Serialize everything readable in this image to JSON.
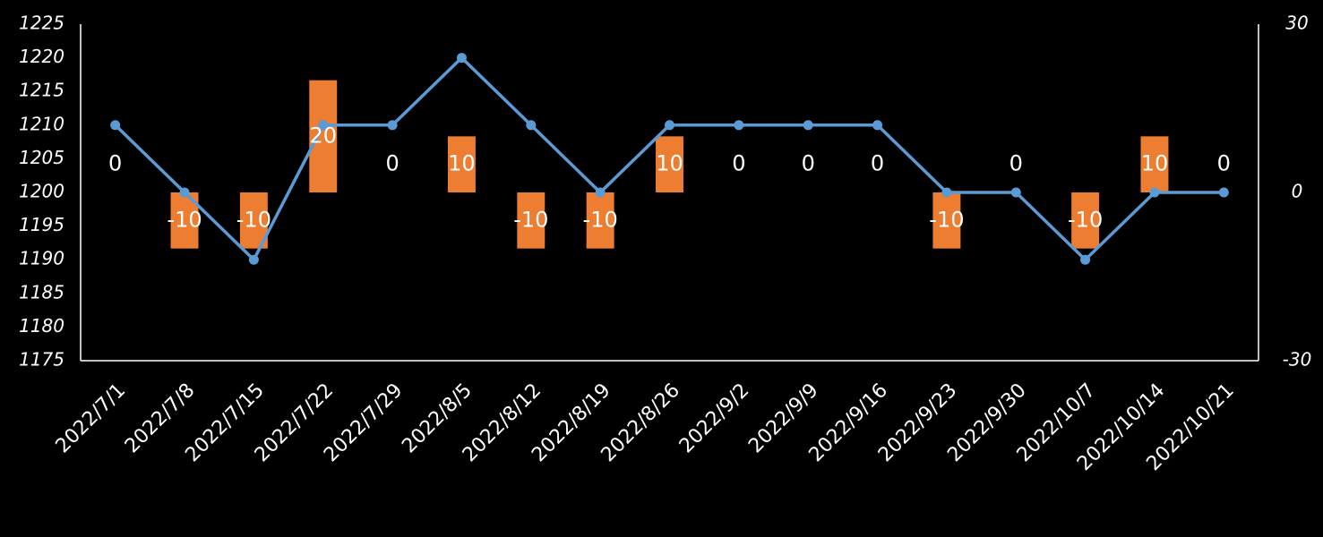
{
  "chart_data": {
    "type": "bar",
    "categories": [
      "2022/7/1",
      "2022/7/8",
      "2022/7/15",
      "2022/7/22",
      "2022/7/29",
      "2022/8/5",
      "2022/8/12",
      "2022/8/19",
      "2022/8/26",
      "2022/9/2",
      "2022/9/9",
      "2022/9/16",
      "2022/9/23",
      "2022/9/30",
      "2022/10/7",
      "2022/10/14",
      "2022/10/21"
    ],
    "series": [
      {
        "type": "bar",
        "axis": "y2",
        "color": "#ed7d31",
        "data_labels": true,
        "values": [
          0,
          -10,
          -10,
          20,
          0,
          10,
          -10,
          -10,
          10,
          0,
          0,
          0,
          -10,
          0,
          -10,
          10,
          0
        ]
      },
      {
        "type": "line",
        "color": "#5b9bd5",
        "values": [
          1210,
          1200,
          1190,
          1210,
          1210,
          1220,
          1210,
          1200,
          1210,
          1210,
          1210,
          1210,
          1200,
          1200,
          1190,
          1200,
          1200
        ]
      }
    ],
    "ylim": [
      1175,
      1225
    ],
    "yticks": [
      1175,
      1180,
      1185,
      1190,
      1195,
      1200,
      1205,
      1210,
      1215,
      1220,
      1225
    ],
    "y2lim": [
      -30,
      30
    ],
    "y2ticks": [
      -30,
      0,
      30
    ],
    "grid": false
  }
}
